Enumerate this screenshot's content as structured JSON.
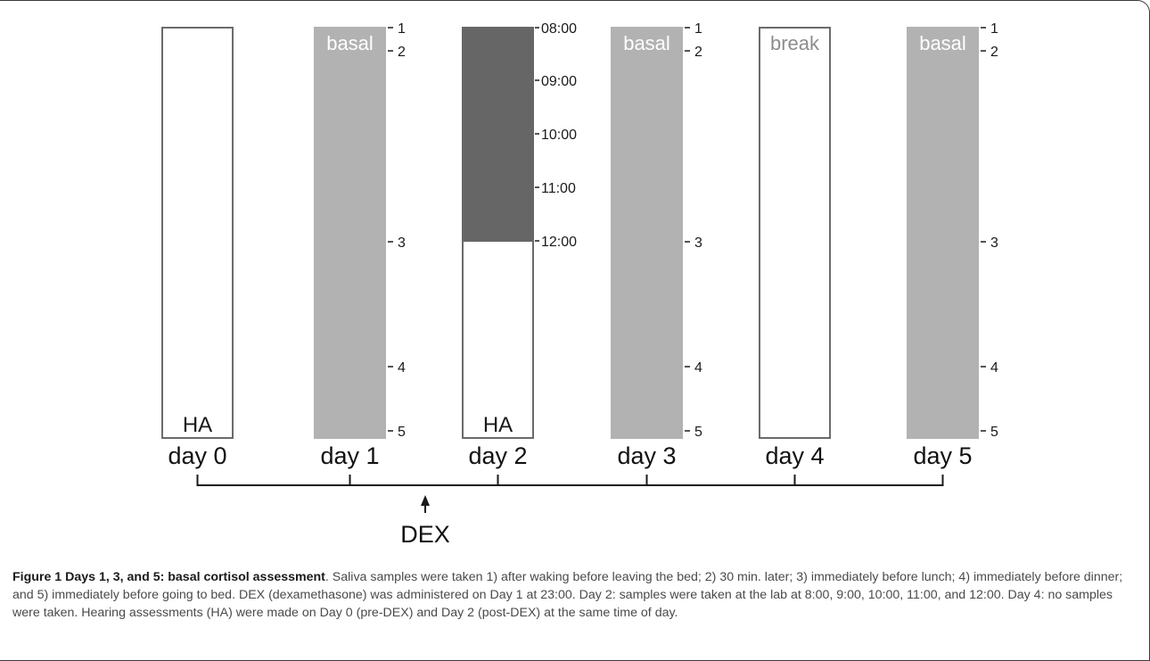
{
  "days": [
    {
      "id": "day0",
      "label": "day 0",
      "bar_type": "outline",
      "bar_label": "HA",
      "bar_label_pos": "bottom",
      "has_ticks": false
    },
    {
      "id": "day1",
      "label": "day 1",
      "bar_type": "gray",
      "bar_label": "basal",
      "bar_label_pos": "top",
      "has_ticks": true
    },
    {
      "id": "day2",
      "label": "day 2",
      "bar_type": "split",
      "bar_label": "HA",
      "bar_label_pos": "bottom",
      "has_ticks": false,
      "time_labels": [
        "08:00",
        "09:00",
        "10:00",
        "11:00",
        "12:00"
      ]
    },
    {
      "id": "day3",
      "label": "day 3",
      "bar_type": "gray",
      "bar_label": "basal",
      "bar_label_pos": "top",
      "has_ticks": true
    },
    {
      "id": "day4",
      "label": "day 4",
      "bar_type": "outline",
      "bar_label": "break",
      "bar_label_pos": "top",
      "has_ticks": false
    },
    {
      "id": "day5",
      "label": "day 5",
      "bar_type": "gray",
      "bar_label": "basal",
      "bar_label_pos": "top",
      "has_ticks": true
    }
  ],
  "sample_ticks": [
    "1",
    "2",
    "3",
    "4",
    "5"
  ],
  "dex_label": "DEX",
  "colors": {
    "gray_bar": "#b2b2b2",
    "dark_bar": "#666666",
    "outline": "#6b6b6b",
    "line": "#1a1a1a",
    "bar_label_white": "#ffffff",
    "break_label": "#8c8c8c"
  },
  "caption": {
    "figure_title": "Figure 1 Days 1, 3, and 5: basal cortisol assessment",
    "text": ". Saliva samples were taken 1) after waking before leaving the bed; 2) 30 min. later; 3) immediately before lunch; 4) immediately before dinner; and 5) immediately before going to bed. DEX (dexamethasone) was administered on Day 1 at 23:00. Day 2: samples were taken at the lab at 8:00, 9:00, 10:00, 11:00, and 12:00. Day 4: no samples were taken. Hearing assessments (HA) were made on Day 0 (pre-DEX) and Day 2 (post-DEX) at the same time of day."
  }
}
